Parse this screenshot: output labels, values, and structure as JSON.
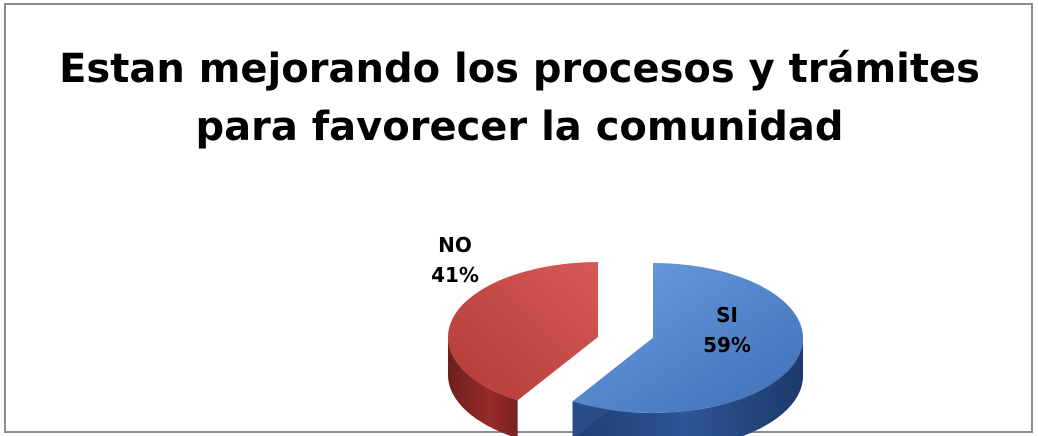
{
  "chart_data": {
    "type": "pie",
    "title": [
      "Estan mejorando los procesos y trámites",
      "para favorecer la comunidad"
    ],
    "slices": [
      {
        "name": "SI",
        "label": "59%",
        "value": 59,
        "color": "#4a7ec9"
      },
      {
        "name": "NO",
        "label": "41%",
        "value": 41,
        "color": "#c0403d"
      }
    ],
    "legend": "none",
    "data_labels": "category and percent"
  }
}
